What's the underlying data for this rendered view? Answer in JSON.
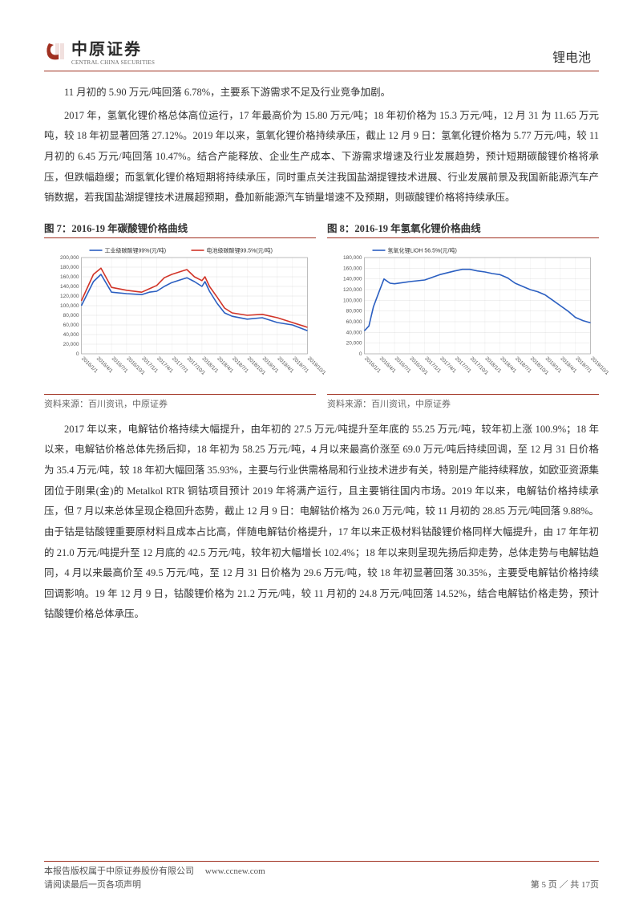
{
  "header": {
    "logo_name": "中原证券",
    "logo_sub": "CENTRAL CHINA SECURITIES",
    "doc_title": "锂电池"
  },
  "paragraphs": {
    "p1": "11 月初的 5.90 万元/吨回落 6.78%，主要系下游需求不足及行业竞争加剧。",
    "p2": "2017 年，氢氧化锂价格总体高位运行，17 年最高价为 15.80 万元/吨；18 年初价格为 15.3 万元/吨，12 月 31 为 11.65 万元吨，较 18 年初显著回落 27.12%。2019 年以来，氢氧化锂价格持续承压，截止 12 月 9 日：氢氧化锂价格为 5.77 万元/吨，较 11 月初的 6.45 万元/吨回落 10.47%。结合产能释放、企业生产成本、下游需求增速及行业发展趋势，预计短期碳酸锂价格将承压，但跌幅趋缓；而氢氧化锂价格短期将持续承压，同时重点关注我国盐湖提锂技术进展、行业发展前景及我国新能源汽车产销数据，若我国盐湖提锂技术进展超预期，叠加新能源汽车销量增速不及预期，则碳酸锂价格将持续承压。",
    "p3": "2017 年以来，电解钴价格持续大幅提升，由年初的 27.5 万元/吨提升至年底的 55.25 万元/吨，较年初上涨 100.9%；18 年以来，电解钴价格总体先扬后抑，18 年初为 58.25 万元/吨，4 月以来最高价涨至 69.0 万元/吨后持续回调，至 12 月 31 日价格为 35.4 万元/吨，较 18 年初大幅回落 35.93%，主要与行业供需格局和行业技术进步有关，特别是产能持续释放，如欧亚资源集团位于刚果(金)的 Metalkol RTR 铜钴项目预计 2019 年将满产运行，且主要销往国内市场。2019 年以来，电解钴价格持续承压，但 7 月以来总体呈现企稳回升态势，截止 12 月 9 日：电解钴价格为 26.0 万元/吨，较 11 月初的 28.85 万元/吨回落 9.88%。由于钴是钴酸锂重要原材料且成本占比高，伴随电解钴价格提升，17 年以来正极材料钴酸锂价格同样大幅提升，由 17 年年初的 21.0 万元/吨提升至 12 月底的 42.5 万元/吨，较年初大幅增长 102.4%；18 年以来则呈现先扬后抑走势，总体走势与电解钴趋同，4 月以来最高价至 49.5 万元/吨，至 12 月 31 日价格为 29.6 万元/吨，较 18 年初显著回落 30.35%，主要受电解钴价格持续回调影响。19 年 12 月 9 日，钴酸锂价格为 21.2 万元/吨，较 11 月初的 24.8 万元/吨回落 14.52%，结合电解钴价格走势，预计钴酸锂价格总体承压。"
  },
  "chart7": {
    "title": "图 7：2016-19 年碳酸锂价格曲线",
    "source": "资料来源：百川资讯，中原证券",
    "type": "line",
    "legend": [
      {
        "label": "工业级碳酸锂99%(元/吨)",
        "color": "#2b5fc1"
      },
      {
        "label": "电池级碳酸锂99.5%(元/吨)",
        "color": "#d13428"
      }
    ],
    "x_labels": [
      "2016/1/1",
      "2016/4/1",
      "2016/7/1",
      "2016/10/1",
      "2017/1/1",
      "2017/4/1",
      "2017/7/1",
      "2017/10/1",
      "2018/1/1",
      "2018/4/1",
      "2018/7/1",
      "2018/10/1",
      "2019/1/1",
      "2019/4/1",
      "2019/7/1",
      "2019/10/1"
    ],
    "y_min": 0,
    "y_max": 200000,
    "y_step": 20000,
    "series": {
      "blue": [
        [
          0,
          100000
        ],
        [
          0.8,
          150000
        ],
        [
          1.3,
          165000
        ],
        [
          2,
          128000
        ],
        [
          3,
          125000
        ],
        [
          4,
          123000
        ],
        [
          4.5,
          128000
        ],
        [
          5,
          130000
        ],
        [
          5.5,
          140000
        ],
        [
          6,
          148000
        ],
        [
          6.7,
          155000
        ],
        [
          7,
          158000
        ],
        [
          7.5,
          150000
        ],
        [
          8,
          140000
        ],
        [
          8.2,
          150000
        ],
        [
          8.5,
          130000
        ],
        [
          9,
          105000
        ],
        [
          9.5,
          85000
        ],
        [
          10,
          78000
        ],
        [
          11,
          72000
        ],
        [
          12,
          75000
        ],
        [
          13,
          65000
        ],
        [
          14,
          60000
        ],
        [
          15,
          48000
        ]
      ],
      "red": [
        [
          0,
          110000
        ],
        [
          0.8,
          165000
        ],
        [
          1.3,
          178000
        ],
        [
          2,
          138000
        ],
        [
          3,
          132000
        ],
        [
          4,
          128000
        ],
        [
          4.5,
          135000
        ],
        [
          5,
          142000
        ],
        [
          5.5,
          158000
        ],
        [
          6,
          165000
        ],
        [
          6.7,
          172000
        ],
        [
          7,
          175000
        ],
        [
          7.5,
          160000
        ],
        [
          8,
          152000
        ],
        [
          8.2,
          160000
        ],
        [
          8.5,
          140000
        ],
        [
          9,
          118000
        ],
        [
          9.5,
          95000
        ],
        [
          10,
          85000
        ],
        [
          11,
          80000
        ],
        [
          12,
          82000
        ],
        [
          13,
          75000
        ],
        [
          14,
          65000
        ],
        [
          15,
          55000
        ]
      ]
    },
    "grid_color": "#999",
    "bg": "#ffffff",
    "tick_font": 6.5
  },
  "chart8": {
    "title": "图 8：2016-19 年氢氧化锂价格曲线",
    "source": "资料来源：百川资讯，中原证券",
    "type": "line",
    "legend": [
      {
        "label": "氢氧化锂LiOH 56.5%(元/吨)",
        "color": "#2b5fc1"
      }
    ],
    "x_labels": [
      "2016/1/1",
      "2016/4/1",
      "2016/7/1",
      "2016/10/1",
      "2017/1/1",
      "2017/4/1",
      "2017/7/1",
      "2017/10/1",
      "2018/1/1",
      "2018/4/1",
      "2018/7/1",
      "2018/10/1",
      "2019/1/1",
      "2019/4/1",
      "2019/7/1",
      "2019/10/1"
    ],
    "y_min": 0,
    "y_max": 180000,
    "y_step": 20000,
    "series": {
      "blue": [
        [
          0,
          43000
        ],
        [
          0.3,
          52000
        ],
        [
          0.6,
          88000
        ],
        [
          1,
          118000
        ],
        [
          1.3,
          140000
        ],
        [
          1.7,
          132000
        ],
        [
          2,
          131000
        ],
        [
          3,
          135000
        ],
        [
          4,
          138000
        ],
        [
          5,
          148000
        ],
        [
          6,
          155000
        ],
        [
          6.5,
          158000
        ],
        [
          7,
          158000
        ],
        [
          7.5,
          155000
        ],
        [
          8,
          153000
        ],
        [
          8.5,
          150000
        ],
        [
          9,
          148000
        ],
        [
          9.5,
          142000
        ],
        [
          10,
          132000
        ],
        [
          10.5,
          126000
        ],
        [
          11,
          120000
        ],
        [
          11.5,
          116000
        ],
        [
          12,
          110000
        ],
        [
          12.5,
          100000
        ],
        [
          13,
          90000
        ],
        [
          13.5,
          80000
        ],
        [
          14,
          68000
        ],
        [
          14.5,
          62000
        ],
        [
          15,
          58000
        ]
      ]
    },
    "grid_color": "#999",
    "bg": "#ffffff",
    "tick_font": 6.5
  },
  "footer": {
    "line1": "本报告版权属于中原证券股份有限公司",
    "url": "www.ccnew.com",
    "line2": "请阅读最后一页各项声明",
    "page": "第 5 页 ／ 共 17页"
  },
  "colors": {
    "accent": "#a03020"
  }
}
